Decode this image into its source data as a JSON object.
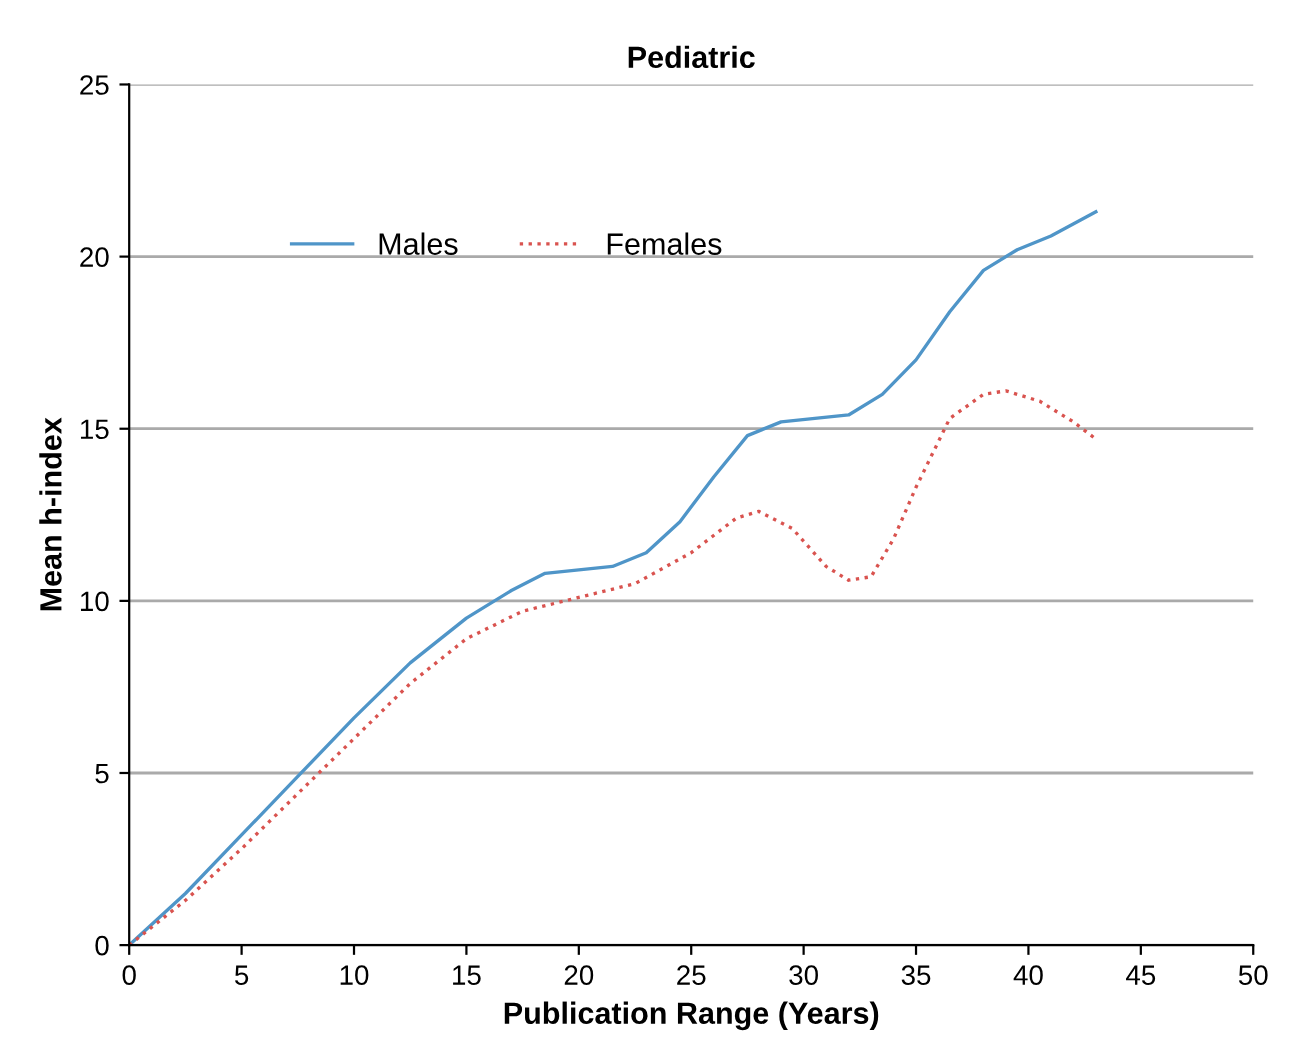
{
  "chart_data": {
    "type": "line",
    "title": "Pediatric",
    "xlabel": "Publication Range (Years)",
    "ylabel": "Mean h-index",
    "series": [
      {
        "name": "Males",
        "color": "#4f95c8",
        "line_style": "solid",
        "x": [
          0,
          2.5,
          5,
          7.5,
          10,
          12.5,
          15,
          17,
          18.5,
          20,
          21.5,
          23,
          24.5,
          26,
          27.5,
          29,
          30.5,
          32,
          33.5,
          35,
          36.5,
          38,
          39.5,
          41,
          43
        ],
        "values": [
          0,
          1.5,
          3.2,
          4.9,
          6.6,
          8.2,
          9.5,
          10.3,
          10.8,
          10.9,
          11.0,
          11.4,
          12.3,
          13.6,
          14.8,
          15.2,
          15.3,
          15.4,
          16.0,
          17.0,
          18.4,
          19.6,
          20.2,
          20.6,
          21.3
        ]
      },
      {
        "name": "Females",
        "color": "#d9534f",
        "line_style": "dotted",
        "x": [
          0,
          2.5,
          5,
          7.5,
          10,
          12.5,
          15,
          17.5,
          20,
          22.5,
          25,
          27,
          28,
          29.5,
          31,
          32,
          33,
          34,
          35,
          36.5,
          38,
          39,
          40.5,
          42,
          43
        ],
        "values": [
          0,
          1.3,
          2.8,
          4.4,
          6.0,
          7.6,
          8.9,
          9.7,
          10.1,
          10.5,
          11.4,
          12.4,
          12.6,
          12.1,
          11.0,
          10.6,
          10.7,
          11.8,
          13.3,
          15.3,
          16.0,
          16.1,
          15.8,
          15.2,
          14.7
        ]
      }
    ],
    "xlim": [
      0,
      50
    ],
    "xticks": [
      0,
      5,
      10,
      15,
      20,
      25,
      30,
      35,
      40,
      45,
      50
    ],
    "ylim": [
      0,
      25
    ],
    "yticks": [
      0,
      5,
      10,
      15,
      20,
      25
    ],
    "grid": "y",
    "legend": "top left",
    "marker": "none"
  }
}
